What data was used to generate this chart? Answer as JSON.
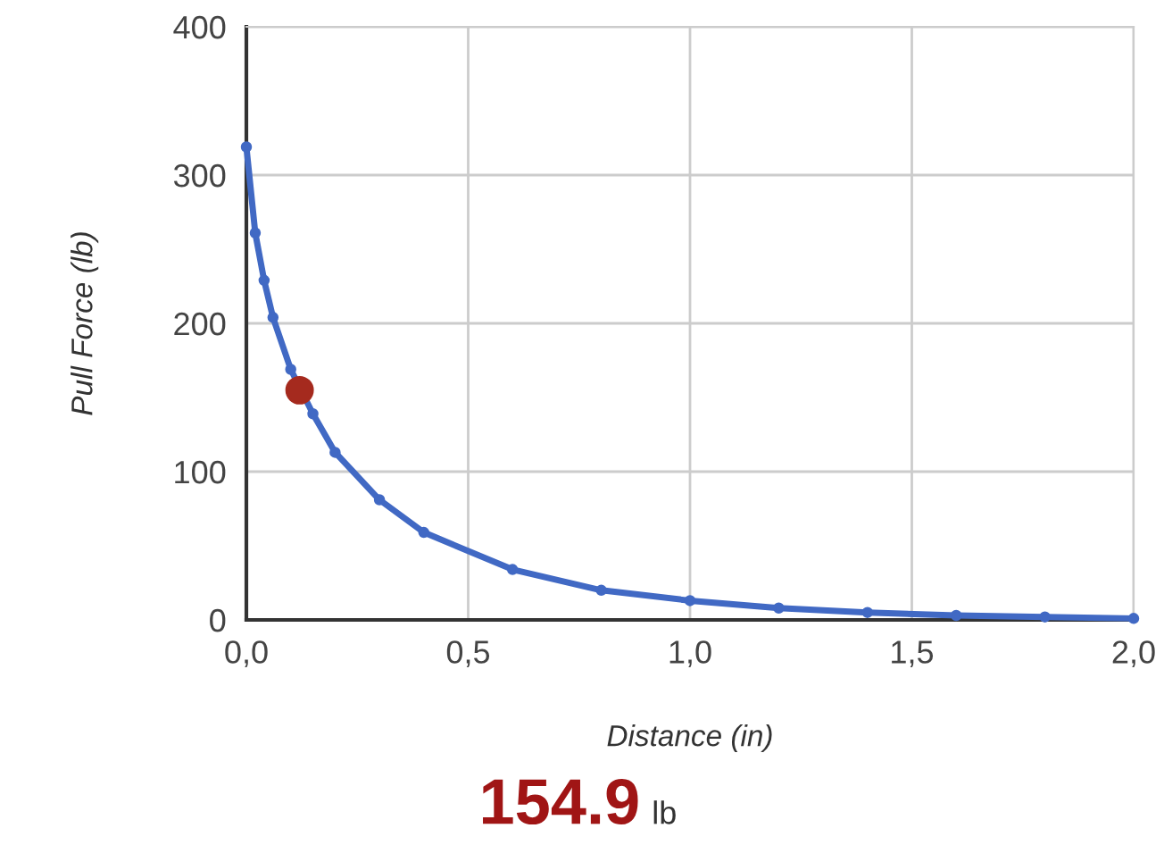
{
  "chart_data": {
    "type": "line",
    "xlabel": "Distance (in)",
    "ylabel": "Pull Force (lb)",
    "x": [
      0,
      0.02,
      0.04,
      0.06,
      0.1,
      0.15,
      0.2,
      0.3,
      0.4,
      0.6,
      0.8,
      1.0,
      1.2,
      1.4,
      1.6,
      1.8,
      2.0
    ],
    "series": [
      {
        "color": "#4169c4",
        "values": [
          319,
          261,
          229,
          204,
          169,
          139,
          113,
          81,
          59,
          34,
          20,
          13,
          8,
          5,
          3,
          2,
          1
        ]
      },
      {
        "type": "scatter",
        "x": [
          0.12
        ],
        "color": "#a52a1e",
        "values": [
          154.9
        ]
      }
    ],
    "xlim": [
      0,
      2.0
    ],
    "ylim": [
      0,
      400
    ],
    "xticks": [
      {
        "value": 0,
        "label": "0,0"
      },
      {
        "value": 0.5,
        "label": "0,5"
      },
      {
        "value": 1.0,
        "label": "1,0"
      },
      {
        "value": 1.5,
        "label": "1,5"
      },
      {
        "value": 2.0,
        "label": "2,0"
      }
    ],
    "yticks": [
      0,
      100,
      200,
      300,
      400
    ],
    "grid": true,
    "marker": "circle",
    "annotations": [
      "154.9 lb"
    ]
  }
}
